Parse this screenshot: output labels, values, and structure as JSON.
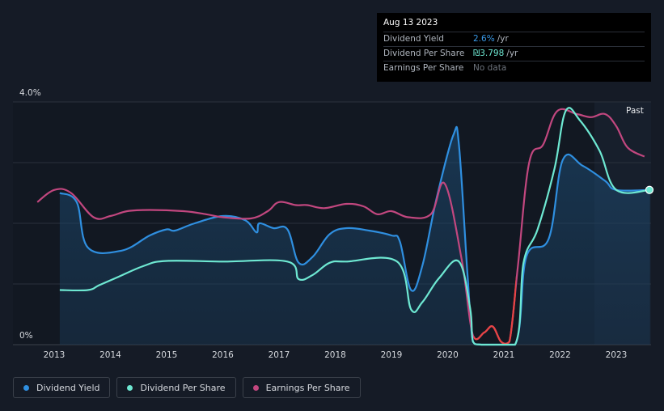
{
  "tooltip": {
    "date": "Aug 13 2023",
    "rows": [
      {
        "label": "Dividend Yield",
        "value": "2.6%",
        "unit": "/yr"
      },
      {
        "label": "Dividend Per Share",
        "value": "₪3.798",
        "unit": "/yr"
      },
      {
        "label": "Earnings Per Share",
        "value": "No data",
        "unit": ""
      }
    ]
  },
  "colors": {
    "dividend_yield": "#2f8fe0",
    "dividend_per_share": "#6ee8d2",
    "earnings_per_share": "#c2477f",
    "eps_negative": "#e84444",
    "background": "#151b26"
  },
  "chart_data": {
    "type": "line",
    "y_axis": {
      "top_label": "4.0%",
      "bottom_label": "0%",
      "ylim": [
        0,
        4.0
      ]
    },
    "x_ticks": [
      "2013",
      "2014",
      "2015",
      "2016",
      "2017",
      "2018",
      "2019",
      "2020",
      "2021",
      "2022",
      "2023"
    ],
    "past_label": "Past",
    "legend": [
      "Dividend Yield",
      "Dividend Per Share",
      "Earnings Per Share"
    ],
    "grid": true,
    "series": [
      {
        "name": "Dividend Yield",
        "unit": "%",
        "filled": true,
        "points": [
          [
            2013.1,
            2.5
          ],
          [
            2013.4,
            2.35
          ],
          [
            2013.6,
            1.6
          ],
          [
            2014.2,
            1.55
          ],
          [
            2014.7,
            1.8
          ],
          [
            2015.0,
            1.9
          ],
          [
            2015.15,
            1.88
          ],
          [
            2015.5,
            2.0
          ],
          [
            2016.0,
            2.12
          ],
          [
            2016.4,
            2.05
          ],
          [
            2016.6,
            1.85
          ],
          [
            2016.65,
            2.0
          ],
          [
            2016.9,
            1.92
          ],
          [
            2017.15,
            1.9
          ],
          [
            2017.35,
            1.35
          ],
          [
            2017.6,
            1.45
          ],
          [
            2017.9,
            1.82
          ],
          [
            2018.2,
            1.92
          ],
          [
            2018.6,
            1.88
          ],
          [
            2019.0,
            1.8
          ],
          [
            2019.15,
            1.7
          ],
          [
            2019.35,
            0.9
          ],
          [
            2019.55,
            1.3
          ],
          [
            2019.8,
            2.4
          ],
          [
            2020.1,
            3.45
          ],
          [
            2020.2,
            3.3
          ],
          [
            2020.35,
            1.2
          ],
          [
            2020.45,
            0.05
          ],
          [
            2020.6,
            0.0
          ],
          [
            2021.2,
            0.0
          ],
          [
            2021.4,
            1.45
          ],
          [
            2021.8,
            1.75
          ],
          [
            2022.05,
            3.05
          ],
          [
            2022.4,
            2.95
          ],
          [
            2022.8,
            2.7
          ],
          [
            2023.0,
            2.55
          ],
          [
            2023.6,
            2.55
          ]
        ]
      },
      {
        "name": "Dividend Per Share",
        "unit": "ILS",
        "filled": false,
        "points": [
          [
            2013.1,
            0.9
          ],
          [
            2013.6,
            0.9
          ],
          [
            2013.8,
            0.98
          ],
          [
            2014.1,
            1.1
          ],
          [
            2014.6,
            1.3
          ],
          [
            2015.0,
            1.38
          ],
          [
            2016.0,
            1.37
          ],
          [
            2017.15,
            1.37
          ],
          [
            2017.35,
            1.08
          ],
          [
            2017.6,
            1.15
          ],
          [
            2017.9,
            1.35
          ],
          [
            2018.2,
            1.37
          ],
          [
            2019.1,
            1.37
          ],
          [
            2019.35,
            0.58
          ],
          [
            2019.55,
            0.7
          ],
          [
            2019.85,
            1.1
          ],
          [
            2020.2,
            1.37
          ],
          [
            2020.4,
            0.6
          ],
          [
            2020.45,
            0.05
          ],
          [
            2020.6,
            0.0
          ],
          [
            2021.2,
            0.0
          ],
          [
            2021.35,
            1.35
          ],
          [
            2021.6,
            1.9
          ],
          [
            2021.9,
            2.9
          ],
          [
            2022.1,
            3.85
          ],
          [
            2022.35,
            3.7
          ],
          [
            2022.7,
            3.2
          ],
          [
            2023.0,
            2.55
          ],
          [
            2023.6,
            2.55
          ]
        ]
      },
      {
        "name": "Earnings Per Share",
        "unit": "ILS",
        "filled": false,
        "points": [
          [
            2012.7,
            2.35
          ],
          [
            2013.0,
            2.55
          ],
          [
            2013.3,
            2.5
          ],
          [
            2013.7,
            2.1
          ],
          [
            2014.0,
            2.12
          ],
          [
            2014.3,
            2.2
          ],
          [
            2014.7,
            2.22
          ],
          [
            2015.3,
            2.2
          ],
          [
            2015.7,
            2.15
          ],
          [
            2016.0,
            2.1
          ],
          [
            2016.5,
            2.08
          ],
          [
            2016.8,
            2.2
          ],
          [
            2017.0,
            2.35
          ],
          [
            2017.3,
            2.3
          ],
          [
            2017.5,
            2.3
          ],
          [
            2017.8,
            2.25
          ],
          [
            2018.2,
            2.32
          ],
          [
            2018.5,
            2.28
          ],
          [
            2018.75,
            2.15
          ],
          [
            2019.0,
            2.2
          ],
          [
            2019.3,
            2.1
          ],
          [
            2019.7,
            2.15
          ],
          [
            2019.95,
            2.65
          ],
          [
            2020.25,
            1.4
          ],
          [
            2020.45,
            0.15
          ],
          [
            2020.65,
            0.2
          ],
          [
            2020.8,
            0.3
          ],
          [
            2020.95,
            0.05
          ],
          [
            2021.1,
            0.05
          ],
          [
            2021.25,
            1.3
          ],
          [
            2021.45,
            3.0
          ],
          [
            2021.7,
            3.3
          ],
          [
            2021.95,
            3.85
          ],
          [
            2022.3,
            3.8
          ],
          [
            2022.55,
            3.75
          ],
          [
            2022.8,
            3.8
          ],
          [
            2023.0,
            3.6
          ],
          [
            2023.2,
            3.25
          ],
          [
            2023.5,
            3.1
          ]
        ]
      }
    ],
    "current_point": {
      "series": "Dividend Per Share",
      "x": 2023.6,
      "y": 2.55
    }
  }
}
